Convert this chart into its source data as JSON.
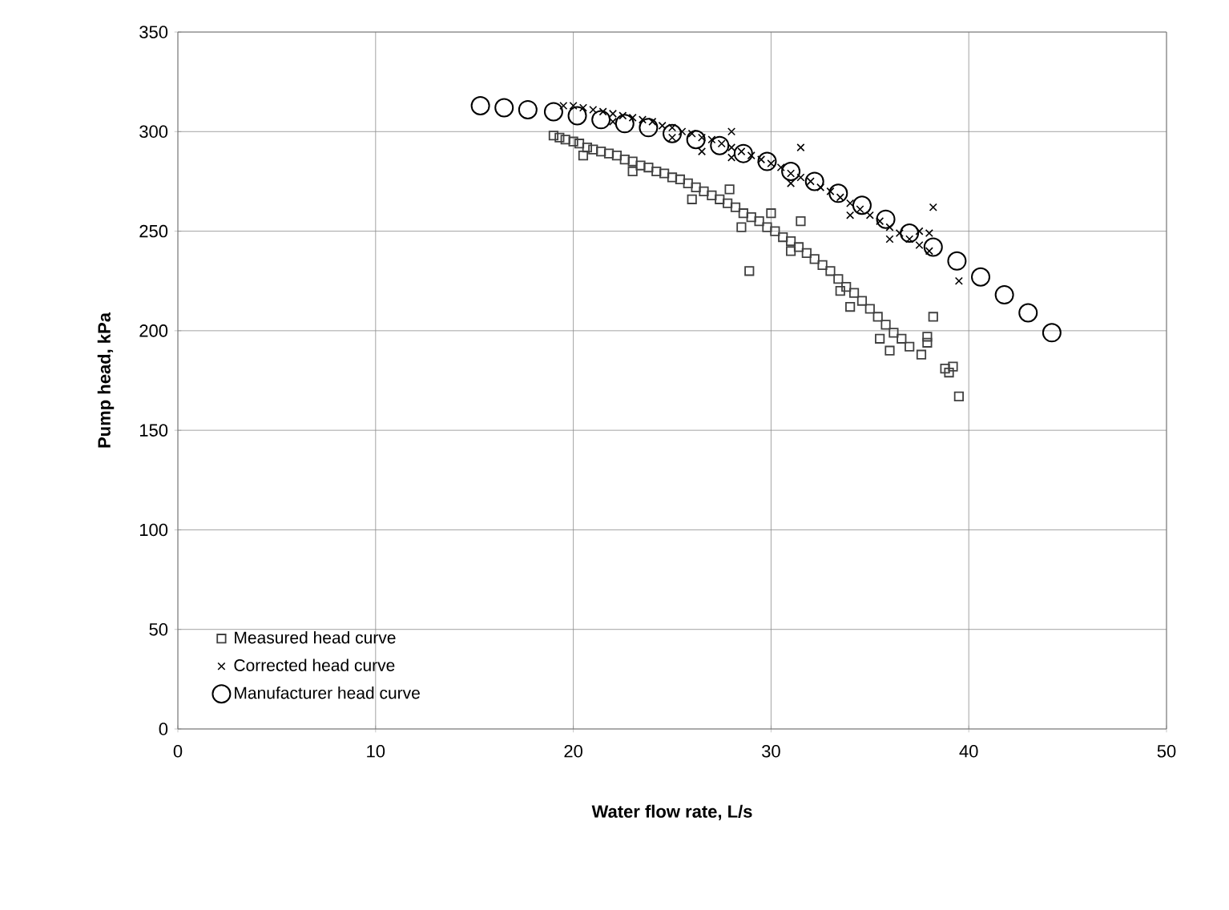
{
  "chart_data": {
    "type": "scatter",
    "xlabel": "Water flow rate, L/s",
    "ylabel": "Pump head, kPa",
    "xlim": [
      0,
      50
    ],
    "xticks": [
      0,
      10,
      20,
      30,
      40,
      50
    ],
    "ylim": [
      0,
      350
    ],
    "yticks": [
      0,
      50,
      100,
      150,
      200,
      250,
      300,
      350
    ],
    "grid": true,
    "legend": "bottom left",
    "series": [
      {
        "name": "Measured head curve",
        "color": "#404040",
        "marker": "square",
        "x": [
          19,
          19.3,
          19.6,
          20,
          20.3,
          20.7,
          21,
          21.4,
          21.8,
          22.2,
          22.6,
          23,
          23.4,
          23.8,
          24.2,
          24.6,
          25,
          25.4,
          25.8,
          26.2,
          26.6,
          27,
          27.4,
          27.8,
          28.2,
          28.6,
          29,
          29.4,
          29.8,
          30.2,
          30.6,
          31,
          31.4,
          31.8,
          32.2,
          32.6,
          33,
          33.4,
          33.8,
          34.2,
          34.6,
          35,
          35.4,
          35.8,
          36.2,
          36.6,
          37,
          20.5,
          23,
          26,
          28.5,
          31,
          33.5,
          35.5,
          36,
          34,
          28.9,
          31.5,
          27.9,
          38.2,
          38.8,
          39,
          39.5,
          37.9,
          37.6,
          39.2,
          37.9,
          30
        ],
        "values": [
          298,
          297,
          296,
          295,
          294,
          292,
          291,
          290,
          289,
          288,
          286,
          285,
          283,
          282,
          280,
          279,
          277,
          276,
          274,
          272,
          270,
          268,
          266,
          264,
          262,
          259,
          257,
          255,
          252,
          250,
          247,
          245,
          242,
          239,
          236,
          233,
          230,
          226,
          222,
          219,
          215,
          211,
          207,
          203,
          199,
          196,
          192,
          288,
          280,
          266,
          252,
          240,
          220,
          196,
          190,
          212,
          230,
          255,
          271,
          207,
          181,
          179,
          167,
          197,
          188,
          182,
          194,
          259
        ]
      },
      {
        "name": "Corrected head curve",
        "color": "#000000",
        "marker": "cross",
        "x": [
          19.5,
          20,
          20.5,
          21,
          21.5,
          22,
          22.5,
          23,
          23.5,
          24,
          24.5,
          25,
          25.5,
          26,
          26.5,
          27,
          27.5,
          28,
          28.5,
          29,
          29.5,
          30,
          30.5,
          31,
          31.5,
          32,
          32.5,
          33,
          33.5,
          34,
          34.5,
          35,
          35.5,
          36,
          36.5,
          37,
          37.5,
          38,
          22,
          25,
          28,
          31,
          34,
          36,
          28,
          31.5,
          38.2,
          39.5,
          38,
          26.5,
          37.5
        ],
        "values": [
          313,
          313,
          312,
          311,
          310,
          309,
          308,
          307,
          306,
          305,
          303,
          302,
          300,
          299,
          297,
          296,
          294,
          292,
          290,
          288,
          286,
          284,
          282,
          279,
          277,
          275,
          272,
          270,
          267,
          264,
          261,
          258,
          255,
          252,
          249,
          246,
          243,
          240,
          305,
          297,
          287,
          274,
          258,
          246,
          300,
          292,
          262,
          225,
          249,
          290,
          250
        ]
      },
      {
        "name": "Manufacturer head curve",
        "color": "#000000",
        "marker": "circle",
        "x": [
          15.3,
          16.5,
          17.7,
          19,
          20.2,
          21.4,
          22.6,
          23.8,
          25,
          26.2,
          27.4,
          28.6,
          29.8,
          31,
          32.2,
          33.4,
          34.6,
          35.8,
          37,
          38.2,
          39.4,
          40.6,
          41.8,
          43,
          44.2
        ],
        "values": [
          313,
          312,
          311,
          310,
          308,
          306,
          304,
          302,
          299,
          296,
          293,
          289,
          285,
          280,
          275,
          269,
          263,
          256,
          249,
          242,
          235,
          227,
          218,
          209,
          199
        ]
      }
    ]
  }
}
